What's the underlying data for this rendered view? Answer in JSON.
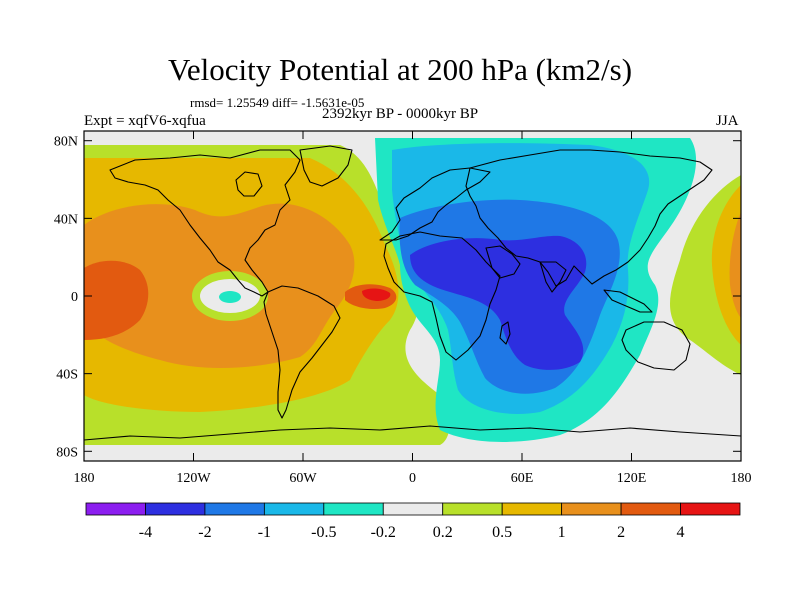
{
  "title": "Velocity Potential at 200 hPa (km2/s)",
  "stats": "rmsd= 1.25549 diff= -1.5631e-05",
  "expt": "Expt = xqfV6-xqfua",
  "period": "2392kyr BP - 0000kyr BP",
  "season": "JJA",
  "axes": {
    "x_ticks": [
      {
        "label": "180",
        "lon": -180
      },
      {
        "label": "120W",
        "lon": -120
      },
      {
        "label": "60W",
        "lon": -60
      },
      {
        "label": "0",
        "lon": 0
      },
      {
        "label": "60E",
        "lon": 60
      },
      {
        "label": "120E",
        "lon": 120
      },
      {
        "label": "180",
        "lon": 180
      }
    ],
    "y_ticks": [
      {
        "label": "80N",
        "lat": 80
      },
      {
        "label": "40N",
        "lat": 40
      },
      {
        "label": "0",
        "lat": 0
      },
      {
        "label": "40S",
        "lat": -40
      },
      {
        "label": "80S",
        "lat": -80
      }
    ]
  },
  "colorbar": {
    "colors": [
      "#8c1ef0",
      "#2d2fe0",
      "#1f78e6",
      "#1ab8e8",
      "#1fe6c4",
      "#ebebeb",
      "#b8e02a",
      "#e6b800",
      "#e8901c",
      "#e25a10",
      "#e61414"
    ],
    "labels": [
      "-4",
      "-2",
      "-1",
      "-0.5",
      "-0.2",
      "0.2",
      "0.5",
      "1",
      "2",
      "4"
    ]
  }
}
